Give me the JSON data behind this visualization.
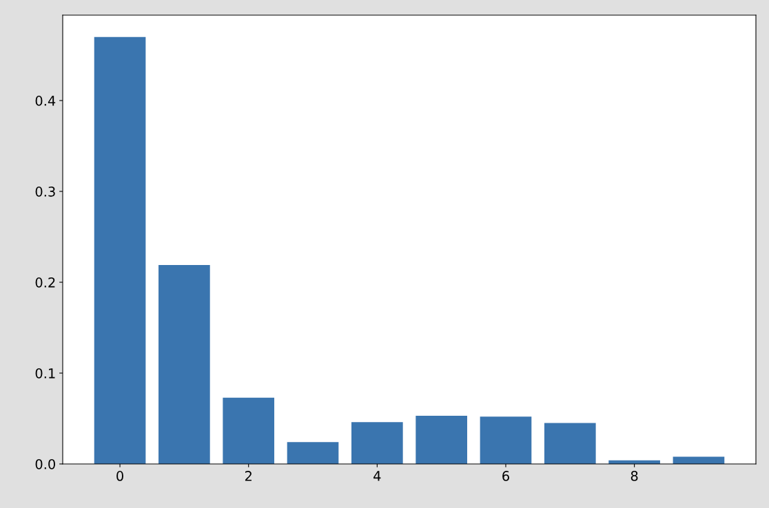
{
  "chart_data": {
    "type": "bar",
    "x": [
      0,
      1,
      2,
      3,
      4,
      5,
      6,
      7,
      8,
      9
    ],
    "values": [
      0.47,
      0.219,
      0.073,
      0.024,
      0.046,
      0.053,
      0.052,
      0.045,
      0.004,
      0.008
    ],
    "color": "#3a75af",
    "xlim": [
      -0.89,
      9.89
    ],
    "xticks": [
      0,
      2,
      4,
      6,
      8
    ],
    "ylim": [
      0,
      0.494
    ],
    "yticks": [
      {
        "value": 0,
        "label": "0.0"
      },
      0.1,
      0.2,
      0.3,
      0.4
    ],
    "grid": false,
    "legend": false
  }
}
